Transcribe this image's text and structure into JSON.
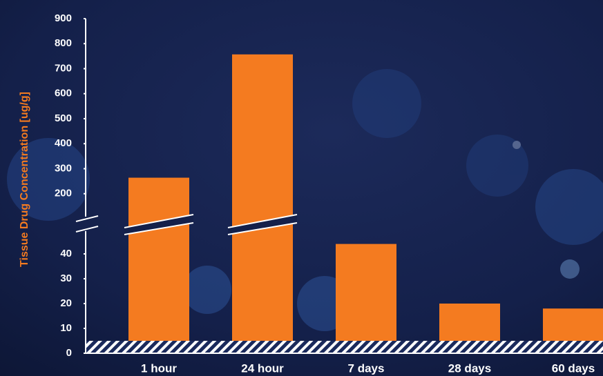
{
  "chart_data": {
    "type": "bar",
    "y_label": "Tissue Drug Concentration [ug/g]",
    "categories": [
      "1 hour",
      "24 hour",
      "7 days",
      "28 days",
      "60 days"
    ],
    "values": [
      264,
      757,
      44,
      20,
      18
    ],
    "color": "#f47b20",
    "ylim_lower": [
      0,
      50
    ],
    "yticks_lower": [
      0,
      10,
      20,
      30,
      40
    ],
    "ylim_upper": [
      100,
      900
    ],
    "yticks_upper": [
      200,
      300,
      400,
      500,
      600,
      700,
      800,
      900
    ]
  }
}
